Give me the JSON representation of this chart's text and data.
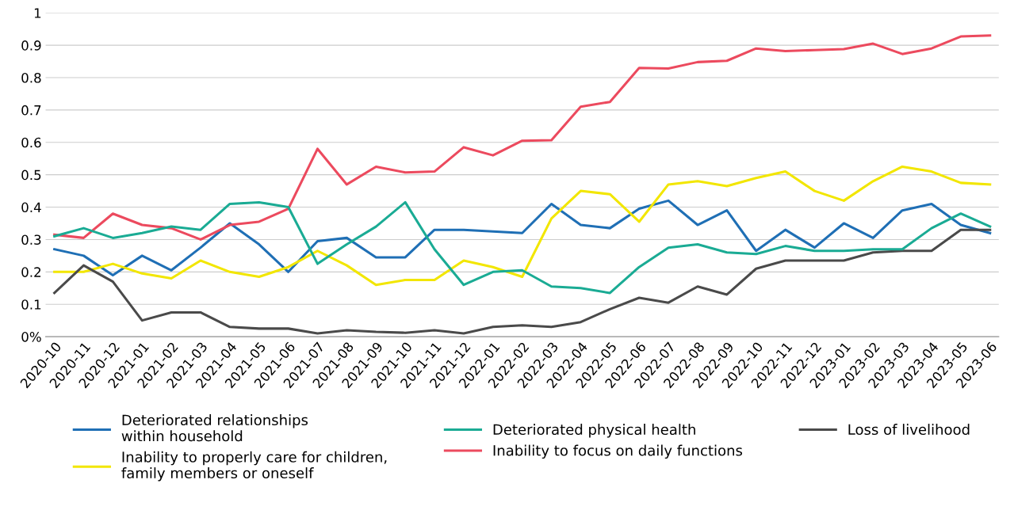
{
  "chart_data": {
    "type": "line",
    "categories": [
      "2020-10",
      "2020-11",
      "2020-12",
      "2021-01",
      "2021-02",
      "2021-03",
      "2021-04",
      "2021-05",
      "2021-06",
      "2021-07",
      "2021-08",
      "2021-09",
      "2021-10",
      "2021-11",
      "2021-12",
      "2022-01",
      "2022-02",
      "2022-03",
      "2022-04",
      "2022-05",
      "2022-06",
      "2022-07",
      "2022-08",
      "2022-09",
      "2022-10",
      "2022-11",
      "2022-12",
      "2023-01",
      "2023-02",
      "2023-03",
      "2023-04",
      "2023-05",
      "2023-06"
    ],
    "series": [
      {
        "name": "Deteriorated relationships\nwithin household",
        "color": "#1f6fb5",
        "values": [
          0.27,
          0.25,
          0.19,
          0.25,
          0.205,
          0.275,
          0.35,
          0.285,
          0.2,
          0.295,
          0.305,
          0.245,
          0.245,
          0.33,
          0.33,
          0.325,
          0.32,
          0.41,
          0.345,
          0.335,
          0.395,
          0.42,
          0.345,
          0.39,
          0.265,
          0.33,
          0.275,
          0.35,
          0.305,
          0.39,
          0.41,
          0.345,
          0.32
        ]
      },
      {
        "name": "Inability to focus on daily functions",
        "color": "#ec4a5e",
        "values": [
          0.315,
          0.305,
          0.38,
          0.345,
          0.335,
          0.3,
          0.345,
          0.355,
          0.395,
          0.58,
          0.47,
          0.525,
          0.507,
          0.51,
          0.585,
          0.56,
          0.605,
          0.607,
          0.71,
          0.725,
          0.83,
          0.828,
          0.848,
          0.852,
          0.89,
          0.882,
          0.885,
          0.888,
          0.905,
          0.873,
          0.89,
          0.927,
          0.93
        ]
      },
      {
        "name": "Inability to properly care for children,\nfamily members or oneself",
        "color": "#f2e600",
        "values": [
          0.2,
          0.2,
          0.225,
          0.195,
          0.18,
          0.235,
          0.2,
          0.185,
          0.215,
          0.265,
          0.22,
          0.16,
          0.175,
          0.175,
          0.235,
          0.215,
          0.185,
          0.365,
          0.45,
          0.44,
          0.355,
          0.47,
          0.48,
          0.465,
          0.49,
          0.51,
          0.45,
          0.42,
          0.48,
          0.525,
          0.51,
          0.475,
          0.47
        ]
      },
      {
        "name": "Loss of livelihood",
        "color": "#4a4a4a",
        "values": [
          0.135,
          0.22,
          0.17,
          0.05,
          0.075,
          0.075,
          0.03,
          0.025,
          0.025,
          0.01,
          0.02,
          0.015,
          0.012,
          0.02,
          0.01,
          0.03,
          0.035,
          0.03,
          0.045,
          0.085,
          0.12,
          0.105,
          0.155,
          0.13,
          0.21,
          0.235,
          0.235,
          0.235,
          0.26,
          0.265,
          0.265,
          0.33,
          0.33
        ]
      },
      {
        "name": "Deteriorated physical health",
        "color": "#1aab94",
        "values": [
          0.31,
          0.335,
          0.305,
          0.32,
          0.34,
          0.33,
          0.41,
          0.415,
          0.4,
          0.225,
          0.285,
          0.34,
          0.415,
          0.27,
          0.16,
          0.2,
          0.205,
          0.155,
          0.15,
          0.135,
          0.215,
          0.275,
          0.285,
          0.26,
          0.255,
          0.28,
          0.265,
          0.265,
          0.27,
          0.27,
          0.335,
          0.38,
          0.34
        ]
      }
    ],
    "ylim": [
      0,
      1
    ],
    "yticks": [
      {
        "value": 0,
        "label": "0%"
      },
      0.1,
      0.2,
      0.3,
      0.4,
      0.5,
      0.6,
      0.7,
      0.8,
      0.9,
      1
    ],
    "grid": "y",
    "legend": "bottom",
    "marker": "none",
    "line_style": "solid"
  }
}
